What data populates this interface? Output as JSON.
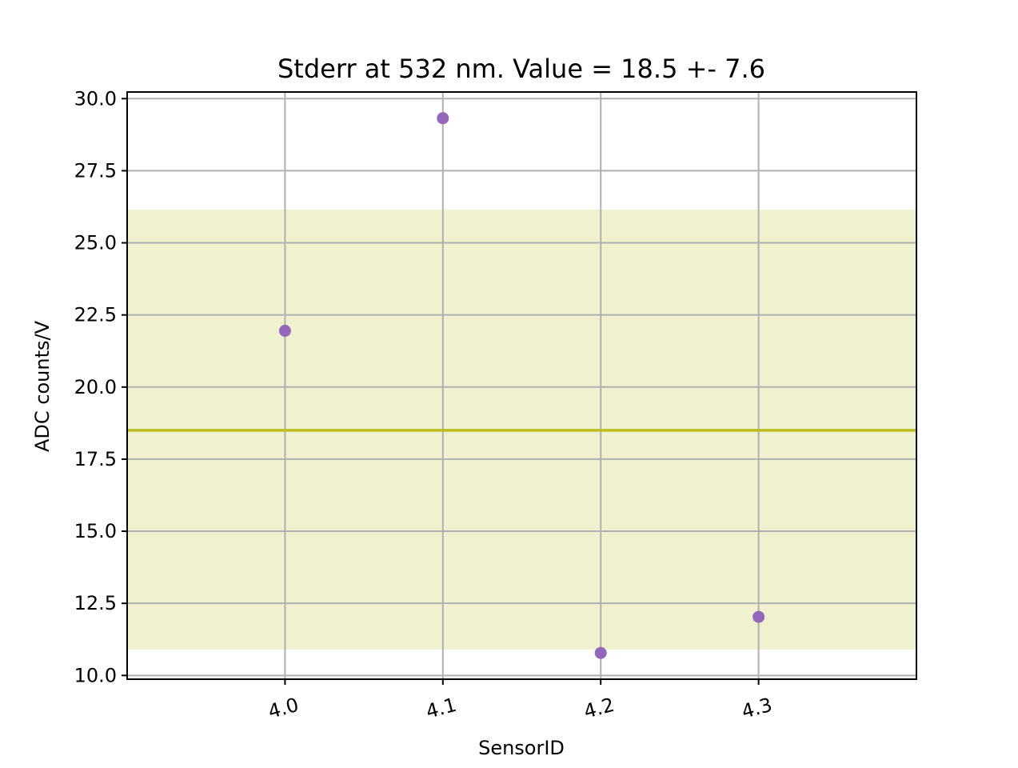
{
  "chart_data": {
    "type": "scatter",
    "title": "Stderr at 532 nm. Value = 18.5 +- 7.6",
    "xlabel": "SensorID",
    "ylabel": "ADC counts/V",
    "xlim": [
      3.9,
      4.4
    ],
    "ylim": [
      9.87,
      30.23
    ],
    "x_ticks": [
      4.0,
      4.1,
      4.2,
      4.3
    ],
    "x_tick_labels": [
      "4.0",
      "4.1",
      "4.2",
      "4.3"
    ],
    "y_ticks": [
      10.0,
      12.5,
      15.0,
      17.5,
      20.0,
      22.5,
      25.0,
      27.5,
      30.0
    ],
    "y_tick_labels": [
      "10.0",
      "12.5",
      "15.0",
      "17.5",
      "20.0",
      "22.5",
      "25.0",
      "27.5",
      "30.0"
    ],
    "grid": true,
    "series": [
      {
        "x": [
          4.0,
          4.1,
          4.2,
          4.3
        ],
        "y": [
          21.95,
          29.32,
          10.78,
          12.03
        ],
        "color": "#9467bd"
      }
    ],
    "reference_line": {
      "y": 18.5,
      "color": "#bcbd22"
    },
    "band": {
      "y_min": 10.9,
      "y_max": 26.15,
      "color": "#bcbd22",
      "opacity": 0.22
    }
  }
}
